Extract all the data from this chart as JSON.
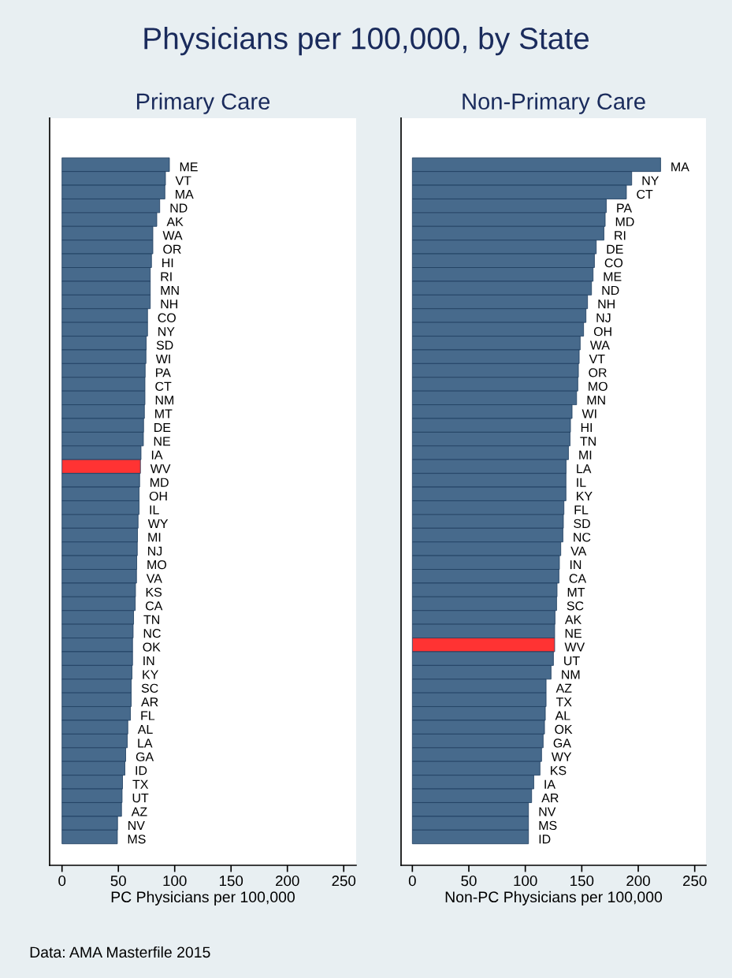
{
  "chart_data": [
    {
      "type": "bar",
      "orientation": "horizontal",
      "title": "Physicians per 100,000, by State",
      "subtitle": "Primary Care",
      "xlabel": "PC Physicians per 100,000",
      "categories": [
        "ME",
        "VT",
        "MA",
        "ND",
        "AK",
        "WA",
        "OR",
        "HI",
        "RI",
        "MN",
        "NH",
        "CO",
        "NY",
        "SD",
        "WI",
        "PA",
        "CT",
        "NM",
        "MT",
        "DE",
        "NE",
        "IA",
        "WV",
        "MD",
        "OH",
        "IL",
        "WY",
        "MI",
        "NJ",
        "MO",
        "VA",
        "KS",
        "CA",
        "TN",
        "NC",
        "OK",
        "IN",
        "KY",
        "SC",
        "AR",
        "FL",
        "AL",
        "LA",
        "GA",
        "ID",
        "TX",
        "UT",
        "AZ",
        "NV",
        "MS"
      ],
      "values": [
        95.3,
        91.8,
        91.3,
        86.7,
        84.1,
        80.6,
        80.6,
        79.4,
        78.3,
        78.3,
        78.3,
        75.9,
        75.9,
        74.7,
        74.5,
        73.8,
        73.6,
        73.6,
        73.1,
        72.4,
        72.2,
        70.1,
        69.6,
        68.9,
        68.4,
        68.4,
        67.5,
        67.0,
        66.8,
        66.3,
        66.1,
        65.2,
        65.0,
        63.5,
        63.1,
        62.6,
        62.6,
        62.1,
        61.4,
        61.4,
        60.7,
        58.4,
        57.9,
        56.5,
        55.8,
        53.7,
        53.3,
        52.8,
        49.3,
        49.1
      ],
      "colors": [
        "#476a8c",
        "#476a8c",
        "#476a8c",
        "#476a8c",
        "#476a8c",
        "#476a8c",
        "#476a8c",
        "#476a8c",
        "#476a8c",
        "#476a8c",
        "#476a8c",
        "#476a8c",
        "#476a8c",
        "#476a8c",
        "#476a8c",
        "#476a8c",
        "#476a8c",
        "#476a8c",
        "#476a8c",
        "#476a8c",
        "#476a8c",
        "#476a8c",
        "#ff3333",
        "#476a8c",
        "#476a8c",
        "#476a8c",
        "#476a8c",
        "#476a8c",
        "#476a8c",
        "#476a8c",
        "#476a8c",
        "#476a8c",
        "#476a8c",
        "#476a8c",
        "#476a8c",
        "#476a8c",
        "#476a8c",
        "#476a8c",
        "#476a8c",
        "#476a8c",
        "#476a8c",
        "#476a8c",
        "#476a8c",
        "#476a8c",
        "#476a8c",
        "#476a8c",
        "#476a8c",
        "#476a8c",
        "#476a8c",
        "#476a8c"
      ],
      "xlim": [
        -11,
        261
      ],
      "xticks": [
        0,
        50,
        100,
        150,
        200,
        250
      ],
      "grid": false,
      "legend": false
    },
    {
      "type": "bar",
      "orientation": "horizontal",
      "subtitle": "Non-Primary Care",
      "xlabel": "Non-PC Physicians per 100,000",
      "categories": [
        "MA",
        "NY",
        "CT",
        "PA",
        "MD",
        "RI",
        "DE",
        "CO",
        "ME",
        "ND",
        "NH",
        "NJ",
        "OH",
        "WA",
        "VT",
        "OR",
        "MO",
        "MN",
        "WI",
        "HI",
        "TN",
        "MI",
        "LA",
        "IL",
        "KY",
        "FL",
        "SD",
        "NC",
        "VA",
        "IN",
        "CA",
        "MT",
        "SC",
        "AK",
        "NE",
        "WV",
        "UT",
        "NM",
        "AZ",
        "TX",
        "AL",
        "OK",
        "GA",
        "WY",
        "KS",
        "IA",
        "AR",
        "NV",
        "MS",
        "ID"
      ],
      "values": [
        219.8,
        194.2,
        189.5,
        171.7,
        170.7,
        169.6,
        162.8,
        161.2,
        160.0,
        158.6,
        155.1,
        153.7,
        151.6,
        148.6,
        147.7,
        147.0,
        146.5,
        145.4,
        141.4,
        140.0,
        139.6,
        138.2,
        136.1,
        136.0,
        136.0,
        134.2,
        133.7,
        133.3,
        131.4,
        130.2,
        129.8,
        128.1,
        127.7,
        126.3,
        126.0,
        126.0,
        124.9,
        122.8,
        118.4,
        118.4,
        117.7,
        117.0,
        115.8,
        114.4,
        113.0,
        107.5,
        105.6,
        102.8,
        102.8,
        102.8
      ],
      "colors": [
        "#476a8c",
        "#476a8c",
        "#476a8c",
        "#476a8c",
        "#476a8c",
        "#476a8c",
        "#476a8c",
        "#476a8c",
        "#476a8c",
        "#476a8c",
        "#476a8c",
        "#476a8c",
        "#476a8c",
        "#476a8c",
        "#476a8c",
        "#476a8c",
        "#476a8c",
        "#476a8c",
        "#476a8c",
        "#476a8c",
        "#476a8c",
        "#476a8c",
        "#476a8c",
        "#476a8c",
        "#476a8c",
        "#476a8c",
        "#476a8c",
        "#476a8c",
        "#476a8c",
        "#476a8c",
        "#476a8c",
        "#476a8c",
        "#476a8c",
        "#476a8c",
        "#476a8c",
        "#ff3333",
        "#476a8c",
        "#476a8c",
        "#476a8c",
        "#476a8c",
        "#476a8c",
        "#476a8c",
        "#476a8c",
        "#476a8c",
        "#476a8c",
        "#476a8c",
        "#476a8c",
        "#476a8c",
        "#476a8c",
        "#476a8c"
      ],
      "xlim": [
        -10,
        260
      ],
      "xticks": [
        0,
        50,
        100,
        150,
        200,
        250
      ],
      "grid": false,
      "legend": false,
      "annotations": [
        "Data: AMA Masterfile 2015"
      ]
    }
  ]
}
